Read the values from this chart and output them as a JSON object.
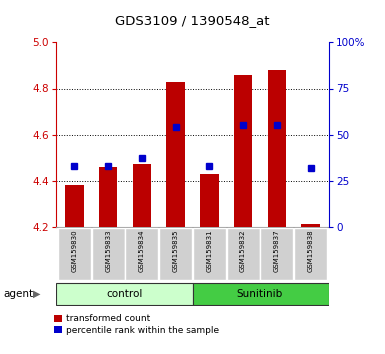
{
  "title": "GDS3109 / 1390548_at",
  "samples": [
    "GSM159830",
    "GSM159833",
    "GSM159834",
    "GSM159835",
    "GSM159831",
    "GSM159832",
    "GSM159837",
    "GSM159838"
  ],
  "groups": [
    "control",
    "control",
    "control",
    "control",
    "Sunitinib",
    "Sunitinib",
    "Sunitinib",
    "Sunitinib"
  ],
  "transformed_count": [
    4.38,
    4.46,
    4.47,
    4.83,
    4.43,
    4.86,
    4.88,
    4.21
  ],
  "percentile_rank": [
    33,
    33,
    37,
    54,
    33,
    55,
    55,
    32
  ],
  "ylim_left": [
    4.2,
    5.0
  ],
  "ylim_right": [
    0,
    100
  ],
  "yticks_left": [
    4.2,
    4.4,
    4.6,
    4.8,
    5.0
  ],
  "yticks_right": [
    0,
    25,
    50,
    75,
    100
  ],
  "ytick_labels_right": [
    "0",
    "25",
    "50",
    "75",
    "100%"
  ],
  "bar_color": "#bb0000",
  "marker_color": "#0000cc",
  "bar_bottom": 4.2,
  "bar_width": 0.55,
  "marker_size": 5,
  "background_color": "#ffffff",
  "plot_bg": "#ffffff",
  "control_color": "#ccffcc",
  "sunitinib_color": "#44cc44",
  "left_tick_color": "#cc0000",
  "right_tick_color": "#0000cc",
  "legend_red_label": "transformed count",
  "legend_blue_label": "percentile rank within the sample",
  "gridline_ticks": [
    4.4,
    4.6,
    4.8
  ]
}
